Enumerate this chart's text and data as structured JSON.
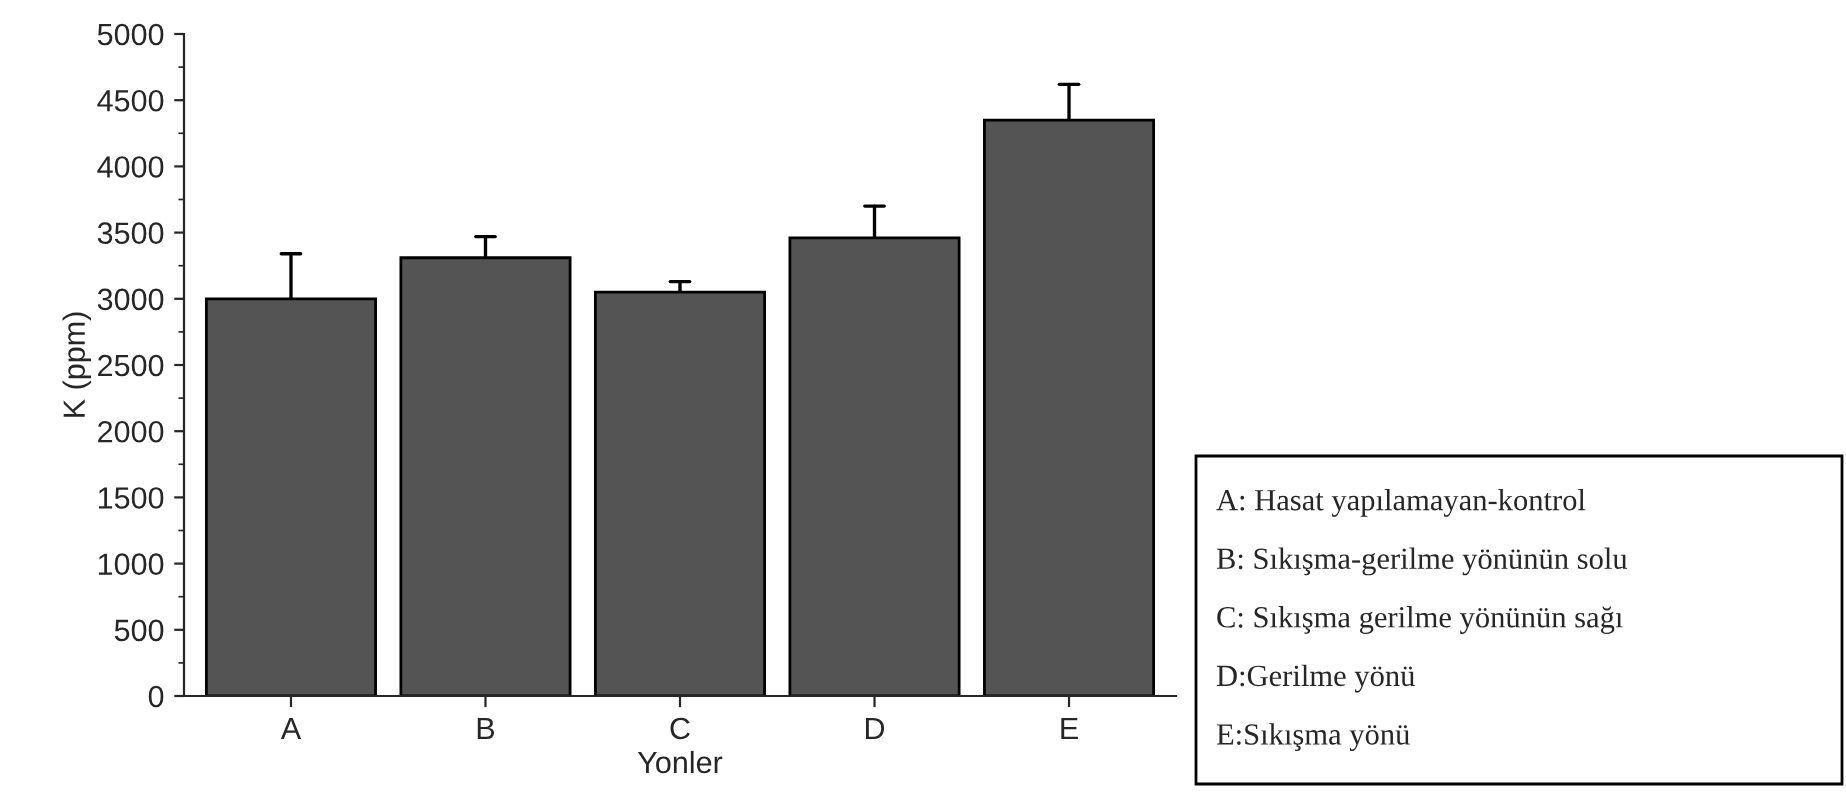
{
  "chart_data": {
    "type": "bar",
    "xlabel": "Yonler",
    "ylabel": "K (ppm)",
    "categories": [
      "A",
      "B",
      "C",
      "D",
      "E"
    ],
    "values": [
      3000,
      3310,
      3050,
      3460,
      4350
    ],
    "errors": [
      [
        3000,
        3340
      ],
      [
        3310,
        3470
      ],
      [
        3050,
        3130
      ],
      [
        3460,
        3700
      ],
      [
        4350,
        4620
      ]
    ],
    "color": "#545454",
    "ylim": [
      0,
      5000
    ],
    "yticks": [
      0,
      500,
      1000,
      1500,
      2000,
      2500,
      3000,
      3500,
      4000,
      4500,
      5000
    ],
    "annotations": [
      "A: Hasat yapılamayan-kontrol",
      "B: Sıkışma-gerilme yönünün solu",
      "C: Sıkışma gerilme yönünün sağı",
      "D:Gerilme yönü",
      "E:Sıkışma yönü"
    ]
  }
}
